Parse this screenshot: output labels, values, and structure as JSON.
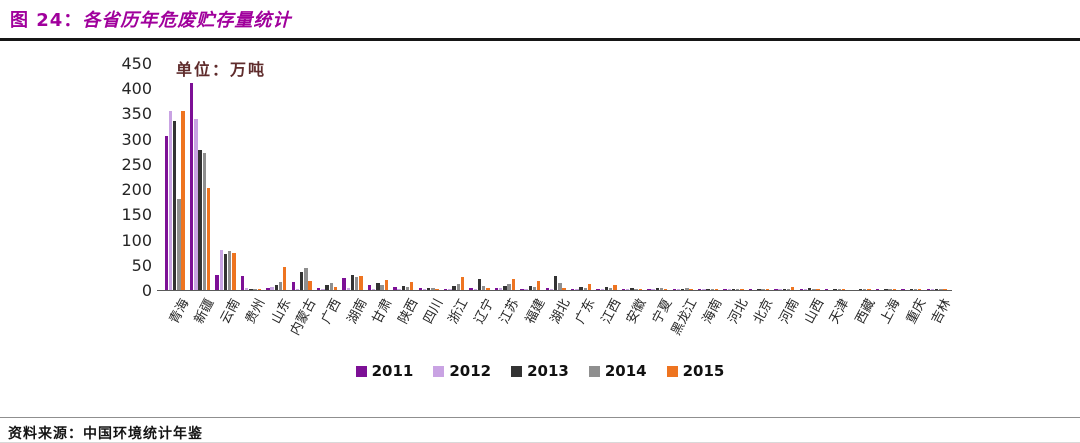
{
  "header": {
    "figure_label": "图 24：",
    "title": "各省历年危废贮存量统计",
    "title_color": "#A0009C"
  },
  "source": {
    "label": "资料来源：",
    "text": "中国环境统计年鉴"
  },
  "chart_data": {
    "type": "bar",
    "title": "各省历年危废贮存量统计",
    "unit_label": "单位：万吨",
    "xlabel": "",
    "ylabel": "",
    "ylim": [
      0,
      450
    ],
    "y_ticks": [
      0,
      50,
      100,
      150,
      200,
      250,
      300,
      350,
      400,
      450
    ],
    "grid": false,
    "legend_position": "bottom",
    "categories": [
      "青海",
      "新疆",
      "云南",
      "贵州",
      "山东",
      "内蒙古",
      "广西",
      "湖南",
      "甘肃",
      "陕西",
      "四川",
      "浙江",
      "辽宁",
      "江苏",
      "福建",
      "湖北",
      "广东",
      "江西",
      "安徽",
      "宁夏",
      "黑龙江",
      "海南",
      "河北",
      "北京",
      "河南",
      "山西",
      "天津",
      "西藏",
      "上海",
      "重庆",
      "吉林"
    ],
    "series": [
      {
        "name": "2011",
        "color": "#7D1096",
        "values": [
          305,
          410,
          30,
          27,
          3,
          15,
          3,
          23,
          10,
          5,
          3,
          2,
          3,
          3,
          2,
          3,
          2,
          2,
          1,
          2,
          1,
          1,
          1,
          1,
          1,
          1,
          1,
          0,
          1,
          1,
          1
        ]
      },
      {
        "name": "2012",
        "color": "#C9A3E3",
        "values": [
          355,
          338,
          80,
          3,
          5,
          2,
          2,
          3,
          2,
          2,
          1,
          2,
          2,
          3,
          2,
          2,
          2,
          1,
          1,
          1,
          1,
          1,
          1,
          0,
          1,
          1,
          0,
          0,
          0,
          0,
          1
        ]
      },
      {
        "name": "2013",
        "color": "#333333",
        "values": [
          335,
          278,
          72,
          2,
          10,
          35,
          10,
          29,
          14,
          8,
          4,
          8,
          22,
          8,
          8,
          27,
          6,
          5,
          3,
          3,
          2,
          2,
          2,
          2,
          2,
          3,
          1,
          1,
          1,
          1,
          2
        ]
      },
      {
        "name": "2014",
        "color": "#8F8F8F",
        "values": [
          180,
          272,
          77,
          2,
          15,
          43,
          13,
          25,
          10,
          5,
          3,
          11,
          8,
          12,
          5,
          13,
          3,
          3,
          2,
          3,
          3,
          2,
          2,
          1,
          2,
          2,
          1,
          1,
          1,
          1,
          1
        ]
      },
      {
        "name": "2015",
        "color": "#EE7420",
        "values": [
          355,
          202,
          73,
          2,
          45,
          17,
          5,
          27,
          20,
          15,
          2,
          25,
          4,
          22,
          18,
          4,
          11,
          9,
          2,
          2,
          2,
          1,
          2,
          1,
          5,
          2,
          1,
          1,
          2,
          1,
          2
        ]
      }
    ]
  }
}
